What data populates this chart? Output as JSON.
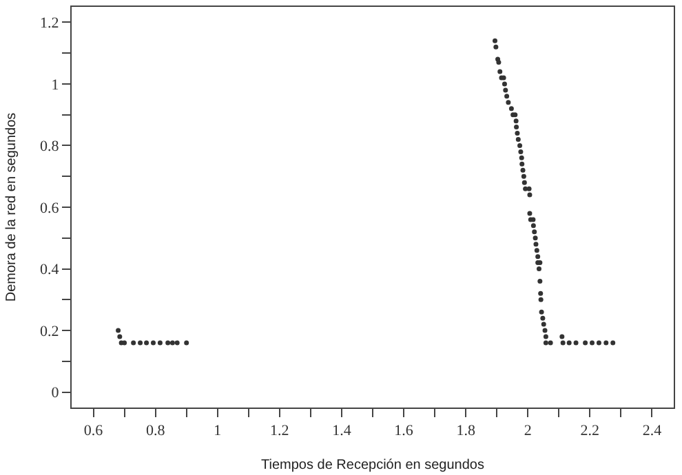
{
  "chart_data": {
    "type": "scatter",
    "xlabel": "Tiempos de Recepción en segundos",
    "ylabel": "Demora de la red en segundos",
    "xlim": [
      0.53,
      2.47
    ],
    "ylim": [
      -0.05,
      1.25
    ],
    "xticks": [
      0.6,
      {
        "value": 0.7,
        "label": null
      },
      0.8,
      {
        "value": 0.9,
        "label": null
      },
      1,
      {
        "value": 1.1,
        "label": null
      },
      1.2,
      {
        "value": 1.3,
        "label": null
      },
      1.4,
      {
        "value": 1.5,
        "label": null
      },
      1.6,
      {
        "value": 1.7,
        "label": null
      },
      1.8,
      {
        "value": 1.9,
        "label": null
      },
      2,
      {
        "value": 2.1,
        "label": null
      },
      2.2,
      {
        "value": 2.3,
        "label": null
      },
      2.4
    ],
    "yticks": [
      0,
      {
        "value": 0.1,
        "label": null
      },
      0.2,
      {
        "value": 0.3,
        "label": null
      },
      0.4,
      {
        "value": 0.5,
        "label": null
      },
      0.6,
      {
        "value": 0.7,
        "label": null
      },
      0.8,
      {
        "value": 0.9,
        "label": null
      },
      1,
      {
        "value": 1.1,
        "label": null
      },
      1.2
    ],
    "marker": "circle",
    "series": [
      {
        "color": "#333333",
        "x": [
          0.68,
          0.685,
          0.69,
          0.7,
          0.729,
          0.751,
          0.771,
          0.793,
          0.815,
          0.84,
          0.855,
          0.87,
          0.9,
          1.894,
          1.897,
          1.903,
          1.906,
          1.91,
          1.915,
          1.922,
          1.925,
          1.928,
          1.932,
          1.937,
          1.947,
          1.952,
          1.959,
          1.962,
          1.963,
          1.966,
          1.969,
          1.974,
          1.977,
          1.98,
          1.981,
          1.984,
          1.987,
          1.989,
          1.992,
          2.004,
          2.006,
          2.006,
          2.009,
          2.017,
          2.018,
          2.021,
          2.024,
          2.026,
          2.029,
          2.032,
          2.032,
          2.039,
          2.036,
          2.039,
          2.041,
          2.042,
          2.044,
          2.048,
          2.051,
          2.055,
          2.058,
          2.058,
          2.073,
          2.11,
          2.113,
          2.133,
          2.155,
          2.185,
          2.207,
          2.229,
          2.252,
          2.274
        ],
        "values": [
          0.2,
          0.18,
          0.16,
          0.16,
          0.16,
          0.16,
          0.16,
          0.16,
          0.16,
          0.16,
          0.16,
          0.16,
          0.16,
          1.14,
          1.12,
          1.08,
          1.07,
          1.04,
          1.02,
          1.02,
          1.0,
          0.98,
          0.96,
          0.94,
          0.92,
          0.9,
          0.9,
          0.88,
          0.86,
          0.84,
          0.82,
          0.8,
          0.78,
          0.76,
          0.74,
          0.72,
          0.7,
          0.68,
          0.66,
          0.66,
          0.64,
          0.58,
          0.56,
          0.56,
          0.54,
          0.52,
          0.5,
          0.48,
          0.46,
          0.44,
          0.42,
          0.42,
          0.4,
          0.36,
          0.32,
          0.3,
          0.26,
          0.24,
          0.22,
          0.2,
          0.18,
          0.16,
          0.16,
          0.18,
          0.16,
          0.16,
          0.16,
          0.16,
          0.16,
          0.16,
          0.16,
          0.16
        ]
      }
    ]
  }
}
